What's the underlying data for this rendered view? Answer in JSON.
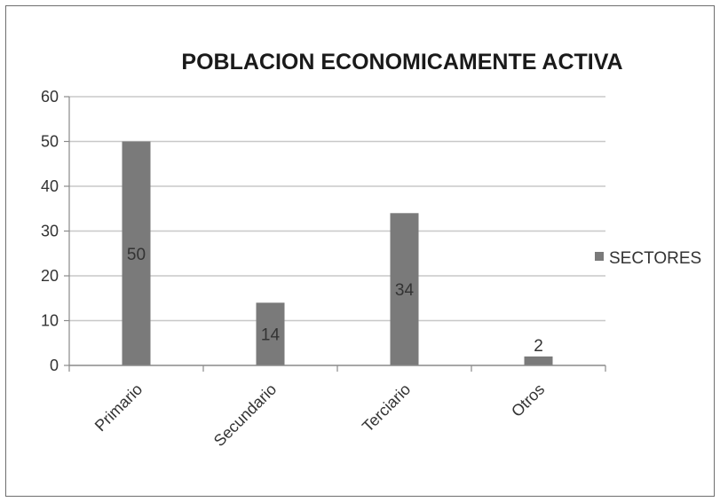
{
  "chart_data": {
    "type": "bar",
    "title": "POBLACION ECONOMICAMENTE ACTIVA",
    "categories": [
      "Primario",
      "Secundario",
      "Terciario",
      "Otros"
    ],
    "series": [
      {
        "name": "SECTORES",
        "values": [
          50,
          14,
          34,
          2
        ]
      }
    ],
    "data_labels": [
      "50",
      "14",
      "34",
      "2"
    ],
    "yticks": [
      "0",
      "10",
      "20",
      "30",
      "40",
      "50",
      "60"
    ],
    "ylim": [
      0,
      60
    ],
    "xlabel": "",
    "ylabel": "",
    "grid": true,
    "legend_position": "right",
    "colors": {
      "bar": "#7a7a7a",
      "grid": "#c8c8c8",
      "axis": "#8a8a8a"
    }
  }
}
